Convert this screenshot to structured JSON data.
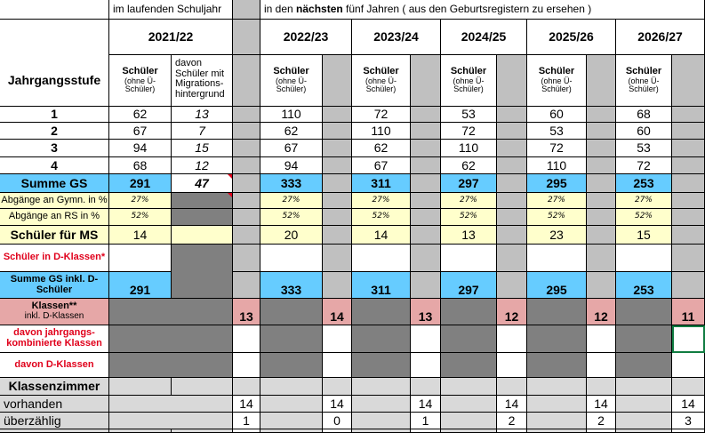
{
  "header": {
    "current_year_caption": "im laufenden Schuljahr",
    "next_years_caption_pre": "in den ",
    "next_years_caption_bold": "nächsten",
    "next_years_caption_post": " fünf Jahren ( aus den Geburtsregistern zu ersehen )"
  },
  "years": [
    "2021/22",
    "2022/23",
    "2023/24",
    "2024/25",
    "2025/26",
    "2026/27"
  ],
  "labels": {
    "jahrgangsstufe": "Jahrgangsstufe",
    "schueler": "Schüler",
    "ohne_ue": "(ohne Ü-Schüler)",
    "migration": "davon Schüler mit Migrations-hintergrund",
    "summe_gs": "Summe GS",
    "abg_gym": "Abgänge an Gymn. in %",
    "abg_rs": "Abgänge an RS in %",
    "schueler_ms": "Schüler für MS",
    "d_klassen_schueler": "Schüler in D-Klassen*",
    "summe_gs_d": "Summe GS inkl. D-Schüler",
    "klassen": "Klassen**",
    "klassen_sub": "inkl. D-Klassen",
    "jahrgangskomb": "davon jahrgangs-kombinierte Klassen",
    "d_klassen": "davon D-Klassen",
    "klassenzimmer": "Klassenzimmer",
    "vorhanden": "vorhanden",
    "ueberzaehlig": "überzählig"
  },
  "grades": [
    "1",
    "2",
    "3",
    "4"
  ],
  "current": {
    "students": [
      "62",
      "67",
      "94",
      "68"
    ],
    "migration": [
      "13",
      "7",
      "15",
      "12"
    ],
    "summe": "291",
    "migration_summe": "47",
    "gym": "27%",
    "rs": "52%",
    "ms": "14",
    "summe_d": "291",
    "klassen": "13",
    "vorhanden": "14",
    "ueberzaehlig": "1"
  },
  "forecast": [
    {
      "students": [
        "110",
        "62",
        "67",
        "94"
      ],
      "summe": "333",
      "gym": "27%",
      "rs": "52%",
      "ms": "20",
      "summe_d": "333",
      "klassen": "14",
      "vorhanden": "14",
      "ueberzaehlig": "0"
    },
    {
      "students": [
        "72",
        "110",
        "62",
        "67"
      ],
      "summe": "311",
      "gym": "27%",
      "rs": "52%",
      "ms": "14",
      "summe_d": "311",
      "klassen": "13",
      "vorhanden": "14",
      "ueberzaehlig": "1"
    },
    {
      "students": [
        "53",
        "72",
        "110",
        "62"
      ],
      "summe": "297",
      "gym": "27%",
      "rs": "52%",
      "ms": "13",
      "summe_d": "297",
      "klassen": "12",
      "vorhanden": "14",
      "ueberzaehlig": "2"
    },
    {
      "students": [
        "60",
        "53",
        "72",
        "110"
      ],
      "summe": "295",
      "gym": "27%",
      "rs": "52%",
      "ms": "23",
      "summe_d": "295",
      "klassen": "12",
      "vorhanden": "14",
      "ueberzaehlig": "2"
    },
    {
      "students": [
        "68",
        "60",
        "53",
        "72"
      ],
      "summe": "253",
      "gym": "27%",
      "rs": "52%",
      "ms": "15",
      "summe_d": "253",
      "klassen": "11",
      "vorhanden": "14",
      "ueberzaehlig": "3"
    }
  ],
  "colors": {
    "summe_blue": "#66ccff",
    "input_yellow": "#ffffcc",
    "klassen_pink": "#e6a7a7",
    "locked_gray": "#808080",
    "separator_gray": "#c0c0c0",
    "label_red": "#e0001b",
    "selection_green": "#107c41"
  }
}
